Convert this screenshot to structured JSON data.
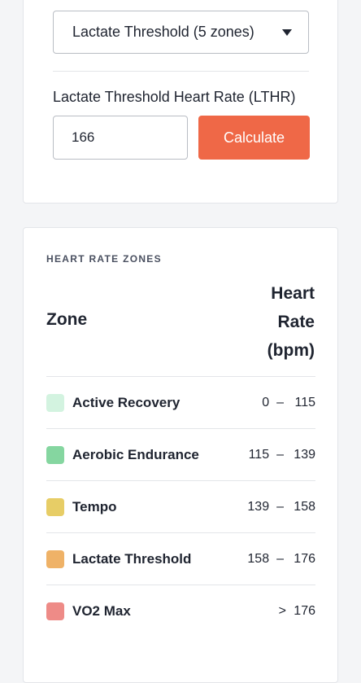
{
  "calculator": {
    "method_selected": "Lactate Threshold (5 zones)",
    "lthr_label": "Lactate Threshold Heart Rate (LTHR)",
    "lthr_value": "166",
    "calculate_label": "Calculate"
  },
  "zones": {
    "section_title": "HEART RATE ZONES",
    "col_zone": "Zone",
    "col_rate_line1": "Heart",
    "col_rate_line2": "Rate",
    "col_rate_line3": "(bpm)",
    "rows": [
      {
        "name": "Active Recovery",
        "low": "0",
        "sep": "–",
        "high": "115",
        "color": "#d3f3e0"
      },
      {
        "name": "Aerobic Endurance",
        "low": "115",
        "sep": "–",
        "high": "139",
        "color": "#85d6a0"
      },
      {
        "name": "Tempo",
        "low": "139",
        "sep": "–",
        "high": "158",
        "color": "#e7cd66"
      },
      {
        "name": "Lactate Threshold",
        "low": "158",
        "sep": "–",
        "high": "176",
        "color": "#efb267"
      },
      {
        "name": "VO2 Max",
        "gt": ">",
        "high": "176",
        "color": "#ee8b87"
      }
    ]
  },
  "colors": {
    "accent": "#ef6847",
    "border": "#b9bdc4",
    "background": "#f4f5f7"
  }
}
